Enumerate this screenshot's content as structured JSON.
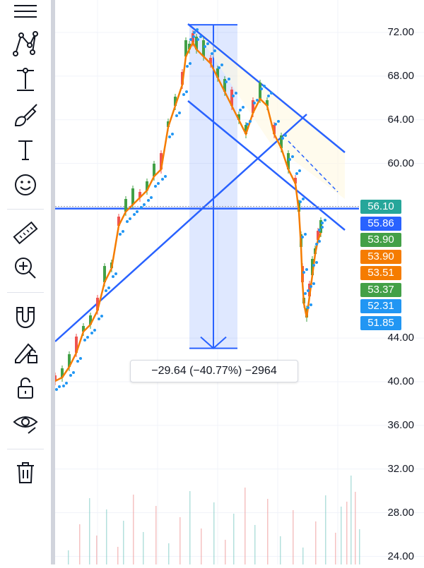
{
  "toolbar": {
    "tools": [
      {
        "name": "lines-tool-icon"
      },
      {
        "name": "pattern-tool-icon"
      },
      {
        "name": "measure-tool-icon"
      },
      {
        "name": "brush-tool-icon"
      },
      {
        "name": "text-tool-icon"
      },
      {
        "name": "emoji-tool-icon"
      },
      {
        "name": "ruler-icon"
      },
      {
        "name": "zoom-in-icon"
      },
      {
        "name": "magnet-icon"
      },
      {
        "name": "lock-drawing-icon"
      },
      {
        "name": "unlock-icon"
      },
      {
        "name": "eye-icon"
      },
      {
        "name": "trash-icon"
      }
    ]
  },
  "chart_data": {
    "type": "candlestick",
    "y_axis": {
      "range": [
        23,
        75
      ],
      "ticks": [
        "72.00",
        "68.00",
        "64.00",
        "60.00",
        "44.00",
        "40.00",
        "36.00",
        "32.00",
        "28.00",
        "24.00"
      ]
    },
    "price_labels": [
      {
        "value": "56.10",
        "color": "#26a69a"
      },
      {
        "value": "55.86",
        "color": "#2962ff"
      },
      {
        "value": "53.90",
        "color": "#43a047"
      },
      {
        "value": "53.90",
        "color": "#f57c00"
      },
      {
        "value": "53.51",
        "color": "#f57c00"
      },
      {
        "value": "53.37",
        "color": "#43a047"
      },
      {
        "value": "52.31",
        "color": "#2196f3"
      },
      {
        "value": "51.85",
        "color": "#2196f3"
      }
    ],
    "measurement": {
      "text": "−29.64 (−40.77%) −2964",
      "from_price": 72.7,
      "to_price": 43.06
    },
    "horizontal_line_price": 55.86,
    "candle_color": "#f57c00",
    "sar_color": "#2196f3",
    "line_color": "#2962ff"
  }
}
